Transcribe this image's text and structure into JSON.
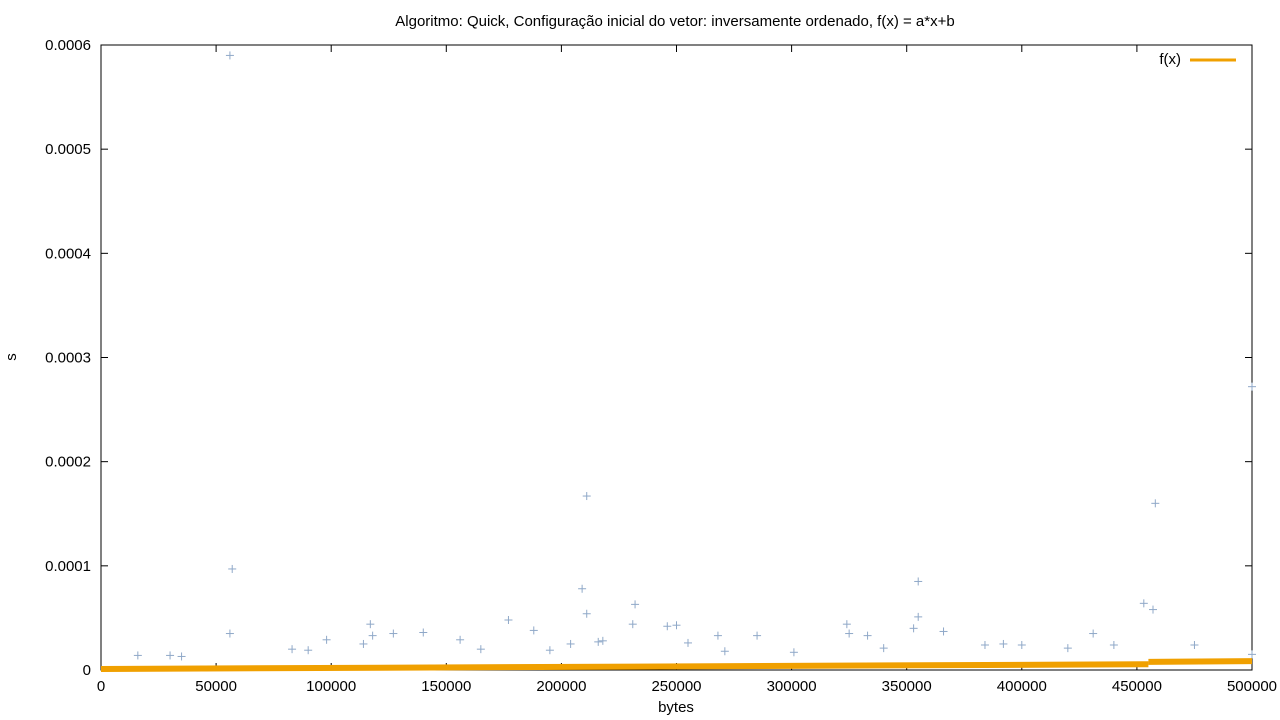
{
  "chart_data": {
    "type": "scatter",
    "title": "Algoritmo: Quick, Configuração inicial do vetor: inversamente ordenado, f(x) = a*x+b",
    "xlabel": "bytes",
    "ylabel": "s",
    "xlim": [
      0,
      500000
    ],
    "ylim": [
      0,
      0.0006
    ],
    "x_ticks": [
      0,
      50000,
      100000,
      150000,
      200000,
      250000,
      300000,
      350000,
      400000,
      450000,
      500000
    ],
    "x_tick_labels": [
      "0",
      "50000",
      "100000",
      "150000",
      "200000",
      "250000",
      "300000",
      "350000",
      "400000",
      "450000",
      "500000"
    ],
    "y_ticks": [
      0,
      0.0001,
      0.0002,
      0.0003,
      0.0004,
      0.0005,
      0.0006
    ],
    "y_tick_labels": [
      "0",
      "0.0001",
      "0.0002",
      "0.0003",
      "0.0004",
      "0.0005",
      "0.0006"
    ],
    "grid": false,
    "legend_position": "top-right",
    "colors": {
      "points": "#8fa8c8",
      "fit": "#f0a000",
      "axis": "#000000"
    },
    "series": [
      {
        "kind": "points",
        "marker": "+",
        "x": [
          56000,
          57000,
          56000,
          211000,
          209000,
          211000,
          232000,
          231000,
          177000,
          117000,
          140000,
          98000,
          127000,
          188000,
          250000,
          246000,
          268000,
          285000,
          324000,
          355000,
          355000,
          353000,
          366000,
          325000,
          453000,
          458000,
          457000,
          475000,
          500000,
          431000,
          500000,
          218000,
          216000,
          156000,
          165000,
          118000,
          114000,
          83000,
          90000,
          16000,
          30000,
          35000,
          195000,
          204000,
          255000,
          271000,
          301000,
          333000,
          340000,
          384000,
          392000,
          400000,
          420000,
          440000
        ],
        "y": [
          0.00059,
          9.7e-05,
          3.5e-05,
          0.000167,
          7.8e-05,
          5.4e-05,
          6.3e-05,
          4.4e-05,
          4.8e-05,
          4.4e-05,
          3.6e-05,
          2.9e-05,
          3.5e-05,
          3.8e-05,
          4.3e-05,
          4.2e-05,
          3.3e-05,
          3.3e-05,
          4.4e-05,
          8.5e-05,
          5.1e-05,
          4e-05,
          3.7e-05,
          3.5e-05,
          6.4e-05,
          0.00016,
          5.8e-05,
          2.4e-05,
          0.000272,
          3.5e-05,
          1.5e-05,
          2.8e-05,
          2.7e-05,
          2.9e-05,
          2e-05,
          3.3e-05,
          2.5e-05,
          2e-05,
          1.9e-05,
          1.4e-05,
          1.4e-05,
          1.3e-05,
          1.9e-05,
          2.5e-05,
          2.6e-05,
          1.8e-05,
          1.7e-05,
          3.3e-05,
          2.1e-05,
          2.4e-05,
          2.5e-05,
          2.4e-05,
          2.1e-05,
          2.4e-05
        ]
      },
      {
        "kind": "fit",
        "name": "f(x)",
        "segments": [
          {
            "x": [
              0,
              455000
            ],
            "y": [
              1e-06,
              5.5e-06
            ]
          },
          {
            "x": [
              455000,
              500000
            ],
            "y": [
              7.8e-06,
              8.5e-06
            ]
          }
        ]
      }
    ]
  }
}
